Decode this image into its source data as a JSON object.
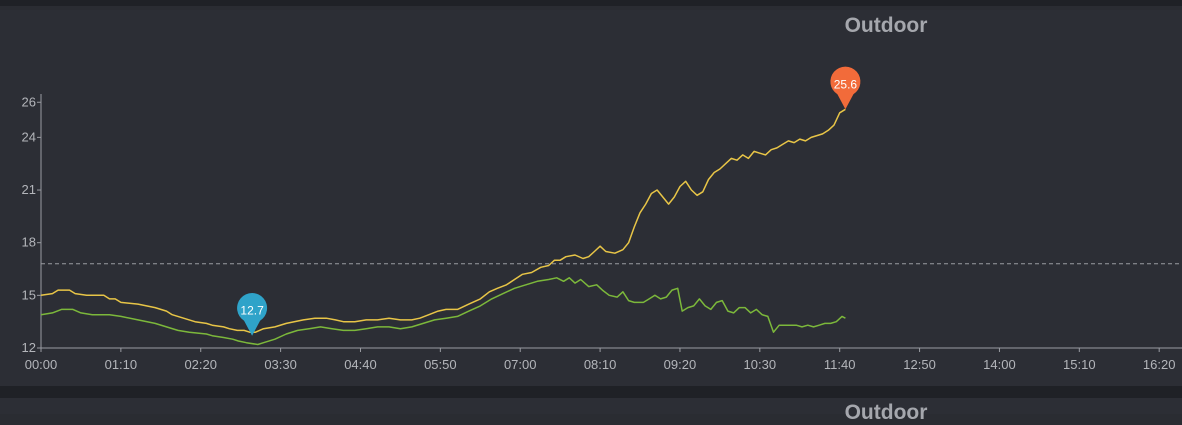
{
  "panels": [
    {
      "title": "Outdoor"
    },
    {
      "title": "Outdoor"
    }
  ],
  "chart_data": {
    "type": "line",
    "title": "Outdoor",
    "ylim": [
      12,
      26.3
    ],
    "y_ticks": [
      "12",
      "15",
      "18",
      "21",
      "24",
      "26"
    ],
    "x_ticks": [
      "00:00",
      "01:10",
      "02:20",
      "03:30",
      "04:40",
      "05:50",
      "07:00",
      "08:10",
      "09:20",
      "10:30",
      "11:40",
      "12:50",
      "14:00",
      "15:10",
      "16:20"
    ],
    "xlim_minutes": [
      0,
      1000
    ],
    "reference_line": 16.8,
    "series": [
      {
        "color": "#e8c547",
        "points": [
          [
            0,
            15.0
          ],
          [
            10,
            15.1
          ],
          [
            15,
            15.3
          ],
          [
            25,
            15.3
          ],
          [
            30,
            15.1
          ],
          [
            40,
            15.0
          ],
          [
            55,
            15.0
          ],
          [
            60,
            14.8
          ],
          [
            65,
            14.8
          ],
          [
            70,
            14.6
          ],
          [
            85,
            14.5
          ],
          [
            100,
            14.3
          ],
          [
            110,
            14.1
          ],
          [
            115,
            13.9
          ],
          [
            125,
            13.7
          ],
          [
            135,
            13.5
          ],
          [
            145,
            13.4
          ],
          [
            150,
            13.3
          ],
          [
            160,
            13.2
          ],
          [
            165,
            13.1
          ],
          [
            172,
            13.0
          ],
          [
            178,
            13.0
          ],
          [
            183,
            12.9
          ],
          [
            188,
            12.9
          ],
          [
            195,
            13.1
          ],
          [
            205,
            13.2
          ],
          [
            215,
            13.4
          ],
          [
            230,
            13.6
          ],
          [
            240,
            13.7
          ],
          [
            250,
            13.7
          ],
          [
            258,
            13.6
          ],
          [
            265,
            13.5
          ],
          [
            275,
            13.5
          ],
          [
            285,
            13.6
          ],
          [
            295,
            13.6
          ],
          [
            305,
            13.7
          ],
          [
            315,
            13.6
          ],
          [
            325,
            13.6
          ],
          [
            332,
            13.7
          ],
          [
            340,
            13.9
          ],
          [
            348,
            14.1
          ],
          [
            355,
            14.2
          ],
          [
            365,
            14.2
          ],
          [
            375,
            14.5
          ],
          [
            385,
            14.8
          ],
          [
            393,
            15.2
          ],
          [
            400,
            15.4
          ],
          [
            408,
            15.6
          ],
          [
            415,
            15.9
          ],
          [
            422,
            16.2
          ],
          [
            430,
            16.3
          ],
          [
            438,
            16.6
          ],
          [
            445,
            16.7
          ],
          [
            450,
            17.0
          ],
          [
            455,
            17.0
          ],
          [
            460,
            17.2
          ],
          [
            468,
            17.3
          ],
          [
            475,
            17.1
          ],
          [
            480,
            17.2
          ],
          [
            485,
            17.5
          ],
          [
            490,
            17.8
          ],
          [
            495,
            17.5
          ],
          [
            503,
            17.4
          ],
          [
            510,
            17.6
          ],
          [
            515,
            18.0
          ],
          [
            520,
            18.9
          ],
          [
            525,
            19.7
          ],
          [
            530,
            20.2
          ],
          [
            535,
            20.8
          ],
          [
            540,
            21.0
          ],
          [
            545,
            20.6
          ],
          [
            550,
            20.2
          ],
          [
            555,
            20.6
          ],
          [
            560,
            21.2
          ],
          [
            565,
            21.5
          ],
          [
            570,
            21.0
          ],
          [
            575,
            20.7
          ],
          [
            580,
            20.9
          ],
          [
            585,
            21.6
          ],
          [
            590,
            22.0
          ],
          [
            595,
            22.2
          ],
          [
            600,
            22.5
          ],
          [
            605,
            22.8
          ],
          [
            610,
            22.7
          ],
          [
            615,
            23.0
          ],
          [
            620,
            22.8
          ],
          [
            625,
            23.2
          ],
          [
            630,
            23.1
          ],
          [
            635,
            23.0
          ],
          [
            640,
            23.3
          ],
          [
            645,
            23.4
          ],
          [
            650,
            23.6
          ],
          [
            655,
            23.8
          ],
          [
            660,
            23.7
          ],
          [
            665,
            23.9
          ],
          [
            670,
            23.8
          ],
          [
            675,
            24.0
          ],
          [
            680,
            24.1
          ],
          [
            685,
            24.2
          ],
          [
            690,
            24.4
          ],
          [
            695,
            24.7
          ],
          [
            700,
            25.4
          ],
          [
            705,
            25.6
          ]
        ]
      },
      {
        "color": "#7cb83b",
        "points": [
          [
            0,
            13.9
          ],
          [
            10,
            14.0
          ],
          [
            18,
            14.2
          ],
          [
            28,
            14.2
          ],
          [
            35,
            14.0
          ],
          [
            45,
            13.9
          ],
          [
            60,
            13.9
          ],
          [
            70,
            13.8
          ],
          [
            85,
            13.6
          ],
          [
            100,
            13.4
          ],
          [
            110,
            13.2
          ],
          [
            120,
            13.0
          ],
          [
            130,
            12.9
          ],
          [
            145,
            12.8
          ],
          [
            150,
            12.7
          ],
          [
            160,
            12.6
          ],
          [
            168,
            12.5
          ],
          [
            173,
            12.4
          ],
          [
            180,
            12.3
          ],
          [
            190,
            12.2
          ],
          [
            195,
            12.3
          ],
          [
            205,
            12.5
          ],
          [
            215,
            12.8
          ],
          [
            225,
            13.0
          ],
          [
            235,
            13.1
          ],
          [
            245,
            13.2
          ],
          [
            255,
            13.1
          ],
          [
            265,
            13.0
          ],
          [
            275,
            13.0
          ],
          [
            285,
            13.1
          ],
          [
            295,
            13.2
          ],
          [
            305,
            13.2
          ],
          [
            315,
            13.1
          ],
          [
            325,
            13.2
          ],
          [
            335,
            13.4
          ],
          [
            345,
            13.6
          ],
          [
            355,
            13.7
          ],
          [
            365,
            13.8
          ],
          [
            375,
            14.1
          ],
          [
            385,
            14.4
          ],
          [
            395,
            14.8
          ],
          [
            405,
            15.1
          ],
          [
            415,
            15.4
          ],
          [
            425,
            15.6
          ],
          [
            435,
            15.8
          ],
          [
            445,
            15.9
          ],
          [
            452,
            16.0
          ],
          [
            458,
            15.8
          ],
          [
            463,
            16.0
          ],
          [
            468,
            15.7
          ],
          [
            473,
            15.9
          ],
          [
            480,
            15.5
          ],
          [
            487,
            15.6
          ],
          [
            492,
            15.3
          ],
          [
            498,
            15.0
          ],
          [
            505,
            14.9
          ],
          [
            510,
            15.2
          ],
          [
            515,
            14.7
          ],
          [
            520,
            14.6
          ],
          [
            528,
            14.6
          ],
          [
            533,
            14.8
          ],
          [
            538,
            15.0
          ],
          [
            543,
            14.8
          ],
          [
            548,
            14.9
          ],
          [
            553,
            15.3
          ],
          [
            558,
            15.4
          ],
          [
            562,
            14.1
          ],
          [
            567,
            14.3
          ],
          [
            572,
            14.4
          ],
          [
            577,
            14.8
          ],
          [
            582,
            14.4
          ],
          [
            587,
            14.2
          ],
          [
            592,
            14.6
          ],
          [
            597,
            14.7
          ],
          [
            602,
            14.1
          ],
          [
            607,
            14.0
          ],
          [
            612,
            14.3
          ],
          [
            617,
            14.3
          ],
          [
            622,
            14.0
          ],
          [
            627,
            14.2
          ],
          [
            632,
            13.9
          ],
          [
            637,
            13.8
          ],
          [
            642,
            12.9
          ],
          [
            647,
            13.3
          ],
          [
            652,
            13.3
          ],
          [
            657,
            13.3
          ],
          [
            662,
            13.3
          ],
          [
            667,
            13.2
          ],
          [
            672,
            13.3
          ],
          [
            677,
            13.2
          ],
          [
            682,
            13.3
          ],
          [
            687,
            13.4
          ],
          [
            692,
            13.4
          ],
          [
            697,
            13.5
          ],
          [
            702,
            13.8
          ],
          [
            705,
            13.7
          ]
        ]
      }
    ],
    "markers": [
      {
        "label": "12.7",
        "x": 185,
        "y": 12.7,
        "color": "#2fa3c9"
      },
      {
        "label": "25.6",
        "x": 705,
        "y": 25.6,
        "color": "#f26b3a"
      }
    ]
  }
}
